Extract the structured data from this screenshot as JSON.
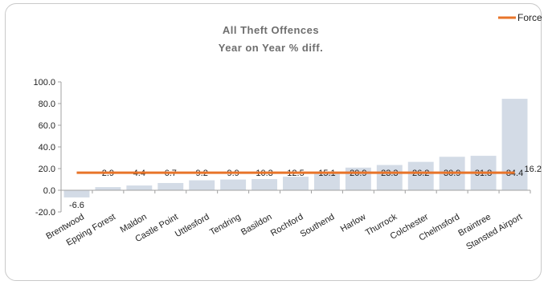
{
  "chart_data": {
    "type": "bar",
    "title": "All Theft  Offences",
    "subtitle": "Year on Year % diff.",
    "xlabel": "",
    "ylabel": "",
    "ylim": [
      -20,
      100
    ],
    "yticks": [
      -20,
      0,
      20,
      40,
      60,
      80,
      100
    ],
    "ytick_labels": [
      "-20.0",
      "0.0",
      "20.0",
      "40.0",
      "60.0",
      "80.0",
      "100.0"
    ],
    "categories": [
      "Brentwood",
      "Epping Forest",
      "Maldon",
      "Castle Point",
      "Uttlesford",
      "Tendring",
      "Basildon",
      "Rochford",
      "Southend",
      "Harlow",
      "Thurrock",
      "Colchester",
      "Chelmsford",
      "Braintree",
      "Stansted Airport"
    ],
    "values": [
      -6.6,
      2.9,
      4.4,
      6.7,
      9.2,
      9.9,
      10.3,
      12.5,
      15.1,
      20.9,
      23.3,
      26.2,
      30.9,
      31.8,
      84.4
    ],
    "value_labels": [
      "-6.6",
      "2.9",
      "4.4",
      "6.7",
      "9.2",
      "9.9",
      "10.3",
      "12.5",
      "15.1",
      "20.9",
      "23.3",
      "26.2",
      "30.9",
      "31.8",
      "84.4"
    ],
    "reference_line": {
      "name": "Force",
      "value": 16.2,
      "label": "16.2"
    },
    "grid": false,
    "legend_position": "top-right",
    "colors": {
      "bar": "#d3dbe6",
      "reference_line": "#e8742a",
      "axis": "#a0a0a0"
    }
  }
}
